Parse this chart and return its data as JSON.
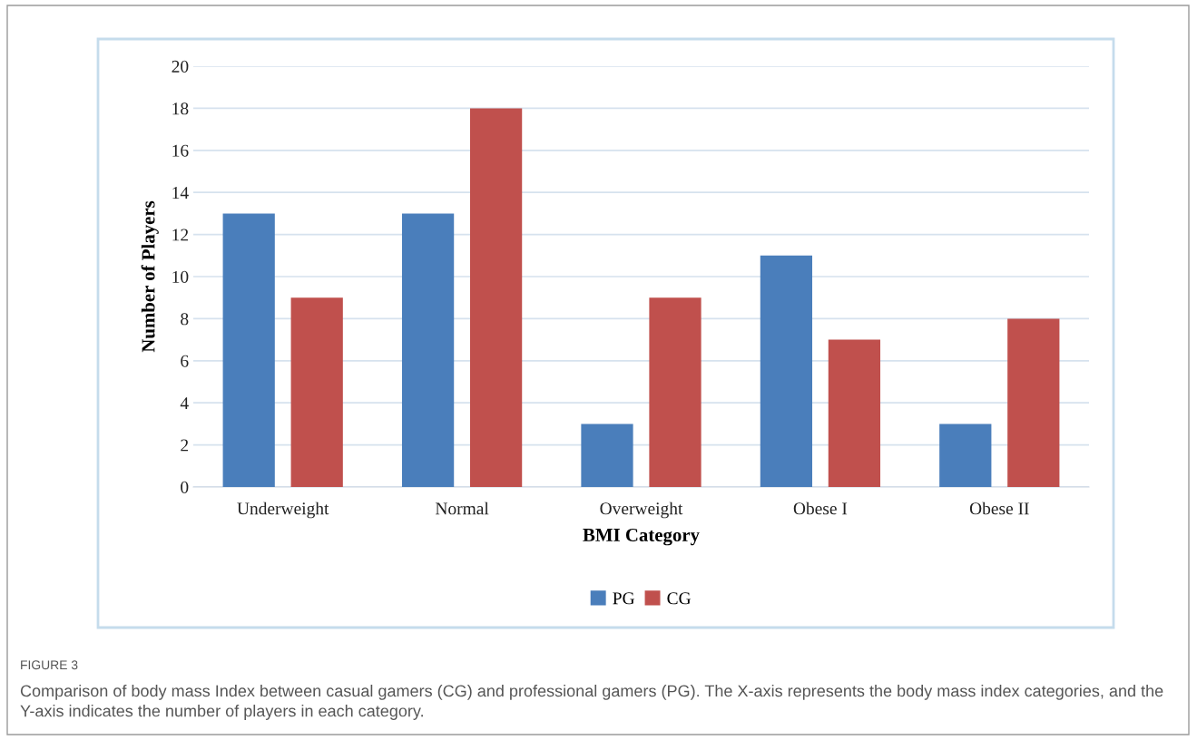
{
  "chart_data": {
    "type": "bar",
    "xlabel": "BMI Category",
    "ylabel": "Number of Players",
    "categories": [
      "Underweight",
      "Normal",
      "Overweight",
      "Obese I",
      "Obese II"
    ],
    "series": [
      {
        "name": "PG",
        "color": "#4a7ebb",
        "values": [
          13,
          13,
          3,
          11,
          3
        ]
      },
      {
        "name": "CG",
        "color": "#c0504d",
        "values": [
          9,
          18,
          9,
          7,
          8
        ]
      }
    ],
    "ylim": [
      0,
      20
    ],
    "yticks": [
      0,
      2,
      4,
      6,
      8,
      10,
      12,
      14,
      16,
      18,
      20
    ],
    "grid": "y",
    "legend": "bottom",
    "annotations": [
      "FIGURE 3",
      "Comparison of body mass Index between casual gamers (CG) and professional gamers (PG). The X-axis represents the body mass index categories, and the Y-axis indicates the number of players in each category."
    ]
  }
}
